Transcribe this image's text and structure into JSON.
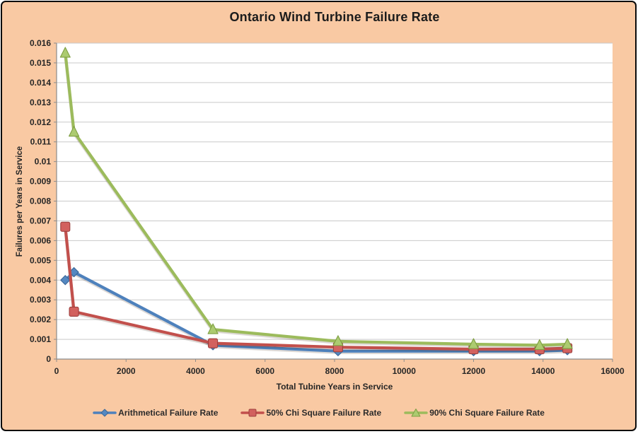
{
  "colors": {
    "chart_background": "#f9c9a3",
    "plot_background": "#ffffff",
    "frame_border": "#0b0b0b",
    "gridline": "#c9c9c9",
    "axis_line": "#8c8c8c",
    "tick_text": "#262626"
  },
  "chart_data": {
    "type": "line",
    "title": "Ontario Wind Turbine Failure Rate",
    "xlabel": "Total Tubine Years in Service",
    "ylabel": "Failures per Years in Service",
    "xlim": [
      0,
      16000
    ],
    "ylim": [
      0,
      0.016
    ],
    "grid": "horizontal",
    "legend_position": "bottom",
    "x_ticks": [
      0,
      2000,
      4000,
      6000,
      8000,
      10000,
      12000,
      14000,
      16000
    ],
    "x_tick_labels": [
      "0",
      "2000",
      "4000",
      "6000",
      "8000",
      "10000",
      "12000",
      "14000",
      "16000"
    ],
    "y_tick_step": 0.001,
    "y_tick_labels": [
      "0",
      "0.001",
      "0.002",
      "0.003",
      "0.004",
      "0.005",
      "0.006",
      "0.007",
      "0.008",
      "0.009",
      "0.01",
      "0.011",
      "0.012",
      "0.013",
      "0.014",
      "0.015",
      "0.016"
    ],
    "x": [
      250,
      500,
      4500,
      8100,
      12000,
      13900,
      14700
    ],
    "series": [
      {
        "name": "Arithmetical Failure Rate",
        "slug": "arithmetical",
        "marker": "diamond",
        "color": "#4e81bc",
        "marker_fill": "#5488c1",
        "marker_stroke": "#3c6899",
        "values": [
          0.004,
          0.0044,
          0.0007,
          0.0004,
          0.0004,
          0.0004,
          0.00045
        ]
      },
      {
        "name": "50% Chi Square Failure Rate",
        "slug": "chi-square-50",
        "marker": "square",
        "color": "#c2504c",
        "marker_fill": "#d2615e",
        "marker_stroke": "#9e403e",
        "values": [
          0.0067,
          0.0024,
          0.0008,
          0.0006,
          0.0005,
          0.0005,
          0.00055
        ]
      },
      {
        "name": "90% Chi Square Failure Rate",
        "slug": "chi-square-90",
        "marker": "triangle",
        "color": "#9cbb5c",
        "marker_fill": "#accb70",
        "marker_stroke": "#7f9f43",
        "values": [
          0.0155,
          0.0115,
          0.0015,
          0.0009,
          0.00075,
          0.0007,
          0.00075
        ]
      }
    ]
  }
}
